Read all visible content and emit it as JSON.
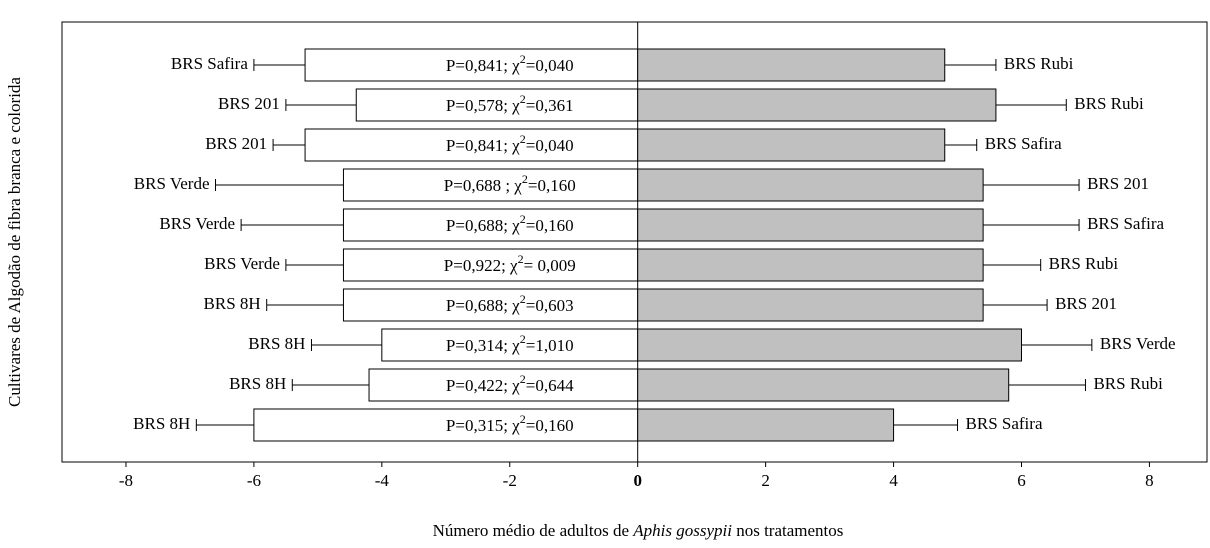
{
  "chart_data": {
    "type": "diverging-bar",
    "y_label": "Cultivares de Algodão de fibra branca e colorida",
    "x_label": [
      "Número médio de adultos de ",
      "Aphis gossypii",
      " nos tratamentos"
    ],
    "xlim": [
      -9,
      8.9
    ],
    "xticks": [
      -8,
      -6,
      -4,
      -2,
      0,
      2,
      4,
      6,
      8
    ],
    "series": [
      {
        "color": "#ffffff",
        "labels": [
          "BRS Safira",
          "BRS 201",
          "BRS 201",
          "BRS Verde",
          "BRS Verde",
          "BRS Verde",
          "BRS 8H",
          "BRS 8H",
          "BRS 8H",
          "BRS 8H"
        ],
        "values": [
          -5.2,
          -4.4,
          -5.2,
          -4.6,
          -4.6,
          -4.6,
          -4.6,
          -4.0,
          -4.2,
          -6.0
        ],
        "errors": [
          0.8,
          1.1,
          0.5,
          2.0,
          1.6,
          0.9,
          1.2,
          1.1,
          1.2,
          0.9
        ]
      },
      {
        "color": "#c0c0c0",
        "labels": [
          "BRS Rubi",
          "BRS Rubi",
          "BRS Safira",
          "BRS 201",
          "BRS Safira",
          "BRS Rubi",
          "BRS 201",
          "BRS Verde",
          "BRS Rubi",
          "BRS Safira"
        ],
        "values": [
          4.8,
          5.6,
          4.8,
          5.4,
          5.4,
          5.4,
          5.4,
          6.0,
          5.8,
          4.0
        ],
        "errors": [
          0.8,
          1.1,
          0.5,
          1.5,
          1.5,
          0.9,
          1.0,
          1.1,
          1.2,
          1.0
        ]
      }
    ],
    "annotations": [
      [
        "P=0,841; χ",
        "2",
        "=0,040"
      ],
      [
        "P=0,578; χ",
        "2",
        "=0,361"
      ],
      [
        "P=0,841; χ",
        "2",
        "=0,040"
      ],
      [
        "P=0,688 ; χ",
        "2",
        "=0,160"
      ],
      [
        "P=0,688; χ",
        "2",
        "=0,160"
      ],
      [
        "P=0,922; χ",
        "2",
        "= 0,009"
      ],
      [
        "P=0,688; χ",
        "2",
        "=0,603"
      ],
      [
        "P=0,314; χ",
        "2",
        "=1,010"
      ],
      [
        "P=0,422; χ",
        "2",
        "=0,644"
      ],
      [
        "P=0,315; χ",
        "2",
        "=0,160"
      ]
    ]
  }
}
